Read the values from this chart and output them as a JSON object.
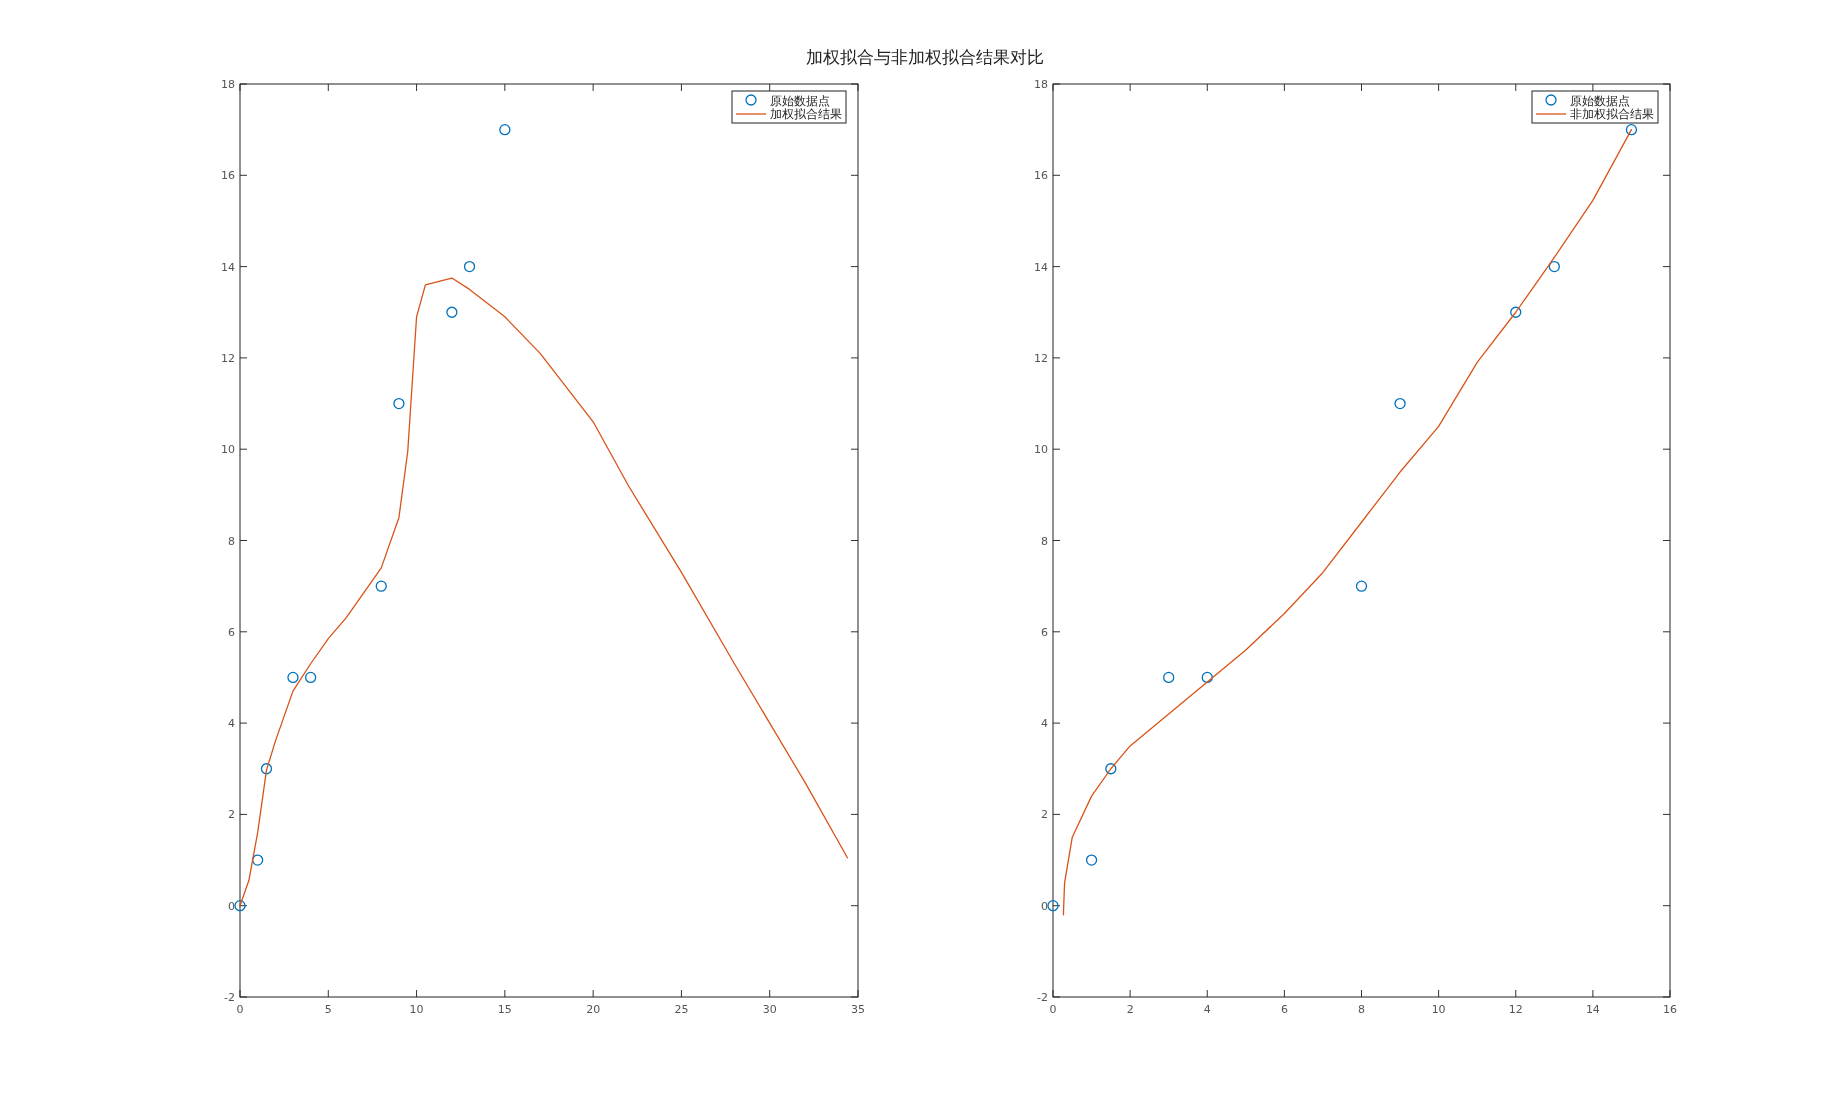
{
  "chart_data": [
    {
      "type": "line",
      "title": "加权拟合与非加权拟合结果对比",
      "xlim": [
        0,
        35
      ],
      "ylim": [
        -2,
        18
      ],
      "xticks": [
        0,
        5,
        10,
        15,
        20,
        25,
        30,
        35
      ],
      "yticks": [
        -2,
        0,
        2,
        4,
        6,
        8,
        10,
        12,
        14,
        16,
        18
      ],
      "legend": "top right",
      "series": [
        {
          "name": "原始数据点",
          "type": "scatter",
          "marker": "circle",
          "color": "#0072bd",
          "x": [
            0,
            1,
            1.5,
            3,
            4,
            8,
            9,
            12,
            13,
            15
          ],
          "values": [
            0,
            1,
            3,
            5,
            5,
            7,
            11,
            13,
            14,
            17
          ]
        },
        {
          "name": "加权拟合结果",
          "type": "line",
          "color": "#d95319",
          "x": [
            0,
            0.5,
            1,
            1.5,
            2,
            3,
            4,
            5,
            6,
            8,
            9,
            9.5,
            10,
            10.5,
            11,
            12,
            13,
            15,
            17,
            20,
            22,
            25,
            28,
            30,
            32,
            34.4
          ],
          "values": [
            0,
            0.55,
            1.6,
            2.97,
            3.6,
            4.7,
            5.3,
            5.85,
            6.3,
            7.4,
            8.5,
            9.95,
            12.9,
            13.6,
            13.65,
            13.75,
            13.5,
            12.9,
            12.1,
            10.6,
            9.2,
            7.3,
            5.3,
            4.0,
            2.7,
            1.05
          ]
        }
      ]
    },
    {
      "type": "line",
      "xlim": [
        0,
        16
      ],
      "ylim": [
        -2,
        18
      ],
      "xticks": [
        0,
        2,
        4,
        6,
        8,
        10,
        12,
        14,
        16
      ],
      "yticks": [
        -2,
        0,
        2,
        4,
        6,
        8,
        10,
        12,
        14,
        16,
        18
      ],
      "legend": "top right",
      "series": [
        {
          "name": "原始数据点",
          "type": "scatter",
          "marker": "circle",
          "color": "#0072bd",
          "x": [
            0,
            1,
            1.5,
            3,
            4,
            8,
            9,
            12,
            13,
            15
          ],
          "values": [
            0,
            1,
            3,
            5,
            5,
            7,
            11,
            13,
            14,
            17
          ]
        },
        {
          "name": "非加权拟合结果",
          "type": "line",
          "color": "#d95319",
          "x": [
            0.27,
            0.3,
            0.5,
            1,
            1.5,
            2,
            3,
            4,
            5,
            6,
            7,
            8,
            9,
            10,
            11,
            12,
            13,
            14,
            15
          ],
          "values": [
            -0.2,
            0.5,
            1.5,
            2.4,
            3.0,
            3.5,
            4.2,
            4.9,
            5.6,
            6.4,
            7.3,
            8.4,
            9.5,
            10.5,
            11.9,
            13.0,
            14.2,
            15.45,
            17
          ]
        }
      ]
    }
  ]
}
